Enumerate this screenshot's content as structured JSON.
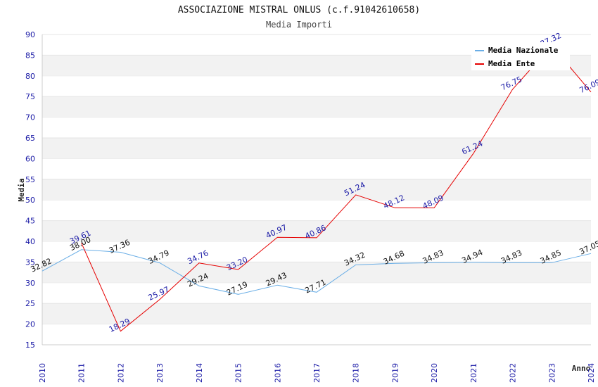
{
  "chart_data": {
    "type": "line",
    "title": "ASSOCIAZIONE MISTRAL ONLUS (c.f.91042610658)",
    "subtitle": "Media Importi",
    "xlabel": "Anno",
    "ylabel": "Media",
    "ylim": [
      15,
      90
    ],
    "ytick_step": 5,
    "categories": [
      "2010",
      "2011",
      "2012",
      "2013",
      "2014",
      "2015",
      "2016",
      "2017",
      "2018",
      "2019",
      "2020",
      "2021",
      "2022",
      "2023",
      "2024"
    ],
    "legend_position": "top-right",
    "series": [
      {
        "name": "Media Nazionale",
        "color": "#6aaee6",
        "label_color": "#111111",
        "values": [
          32.82,
          38.0,
          37.36,
          34.79,
          29.24,
          27.19,
          29.43,
          27.71,
          34.32,
          34.68,
          34.83,
          34.94,
          34.83,
          34.85,
          37.05
        ]
      },
      {
        "name": "Media Ente",
        "color": "#e60000",
        "label_color": "#1a1aa6",
        "values": [
          null,
          39.61,
          18.29,
          25.97,
          34.76,
          33.2,
          40.97,
          40.86,
          51.24,
          48.12,
          48.09,
          61.24,
          76.75,
          87.32,
          76.09
        ]
      }
    ]
  }
}
